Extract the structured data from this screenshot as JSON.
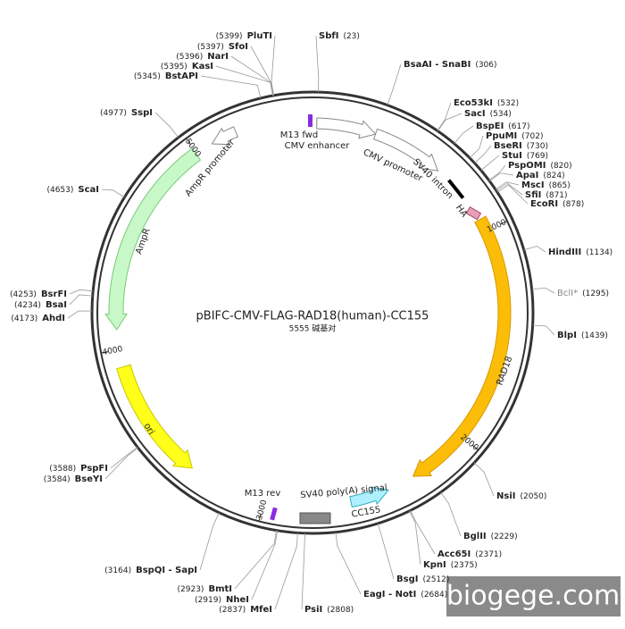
{
  "title": "pBIFC-CMV-FLAG-RAD18(human)-CC155",
  "subtitle": "5555 碱基对",
  "watermark": "biogege.com",
  "ruler": [
    "1000",
    "2000",
    "3000",
    "4000",
    "5000"
  ],
  "features": [
    {
      "label": "M13 fwd"
    },
    {
      "label": "CMV enhancer"
    },
    {
      "label": "CMV promoter"
    },
    {
      "label": "SV40 intron"
    },
    {
      "label": "HA"
    },
    {
      "label": "RAD18"
    },
    {
      "label": "CC155"
    },
    {
      "label": "SV40 poly(A) signal"
    },
    {
      "label": "M13 rev"
    },
    {
      "label": "ori"
    },
    {
      "label": "AmpR"
    },
    {
      "label": "AmpR promoter"
    }
  ],
  "enzymes": [
    {
      "name": "SbfI",
      "position": "(23)"
    },
    {
      "name": "BsaAI - SnaBI",
      "position": "(306)"
    },
    {
      "name": "Eco53kI",
      "position": "(532)"
    },
    {
      "name": "SacI",
      "position": "(534)"
    },
    {
      "name": "BspEI",
      "position": "(617)"
    },
    {
      "name": "PpuMI",
      "position": "(702)"
    },
    {
      "name": "BseRI",
      "position": "(730)"
    },
    {
      "name": "StuI",
      "position": "(769)"
    },
    {
      "name": "PspOMI",
      "position": "(820)"
    },
    {
      "name": "ApaI",
      "position": "(824)"
    },
    {
      "name": "MscI",
      "position": "(865)"
    },
    {
      "name": "SfiI",
      "position": "(871)"
    },
    {
      "name": "EcoRI",
      "position": "(878)"
    },
    {
      "name": "HindIII",
      "position": "(1134)"
    },
    {
      "name": "BclI*",
      "position": "(1295)",
      "color": "#888888"
    },
    {
      "name": "BlpI",
      "position": "(1439)"
    },
    {
      "name": "NsiI",
      "position": "(2050)"
    },
    {
      "name": "BglII",
      "position": "(2229)"
    },
    {
      "name": "Acc65I",
      "position": "(2371)"
    },
    {
      "name": "KpnI",
      "position": "(2375)"
    },
    {
      "name": "BsgI",
      "position": "(2512)"
    },
    {
      "name": "EagI - NotI",
      "position": "(2684)"
    },
    {
      "name": "PsiI",
      "position": "(2808)"
    },
    {
      "name": "MfeI",
      "position": "(2837)"
    },
    {
      "name": "NheI",
      "position": "(2919)"
    },
    {
      "name": "BmtI",
      "position": "(2923)"
    },
    {
      "name": "BspQI - SapI",
      "position": "(3164)"
    },
    {
      "name": "BseYI",
      "position": "(3584)"
    },
    {
      "name": "PspFI",
      "position": "(3588)"
    },
    {
      "name": "AhdI",
      "position": "(4173)"
    },
    {
      "name": "BsaI",
      "position": "(4234)"
    },
    {
      "name": "BsrFI",
      "position": "(4253)"
    },
    {
      "name": "ScaI",
      "position": "(4653)"
    },
    {
      "name": "SspI",
      "position": "(4977)"
    },
    {
      "name": "BstAPI",
      "position": "(5345)"
    },
    {
      "name": "KasI",
      "position": "(5395)"
    },
    {
      "name": "NarI",
      "position": "(5396)"
    },
    {
      "name": "SfoI",
      "position": "(5397)"
    },
    {
      "name": "PluTI",
      "position": "(5399)"
    }
  ]
}
